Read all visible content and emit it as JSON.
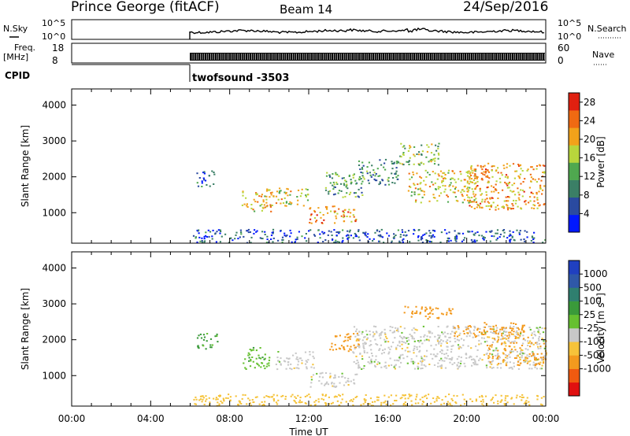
{
  "header": {
    "station": "Prince George (fitACF)",
    "beam": "Beam 14",
    "date": "24/Sep/2016"
  },
  "noise_panel": {
    "left_label": "N.Sky",
    "right_label": "N.Search",
    "ticks": [
      "10^5",
      "10^0"
    ]
  },
  "freq_panel": {
    "left_label_line1": "Freq.",
    "left_label_line2": "[MHz]",
    "left_ticks": [
      "18",
      "8"
    ],
    "right_ticks": [
      "60",
      "0"
    ],
    "right_label": "Nave"
  },
  "cpid": {
    "label": "CPID",
    "program": "twofsound -3503"
  },
  "colors": {
    "power_scale": [
      "#0018ff",
      "#2a4aa0",
      "#3b7f66",
      "#4fa84f",
      "#b8d63c",
      "#f2a21a",
      "#f06a12",
      "#e02010"
    ],
    "velocity_scale": [
      "#e01010",
      "#f05a10",
      "#f39a1e",
      "#f6c33a",
      "#c8c8c8",
      "#66c030",
      "#3a9a3a",
      "#2f7f6f",
      "#2f58a8",
      "#2040c0"
    ]
  },
  "chart_data": [
    {
      "type": "heatmap",
      "name": "Power",
      "ylabel": "Slant Range [km]",
      "yticks": [
        "1000",
        "2000",
        "3000",
        "4000"
      ],
      "ylim": [
        150,
        4450
      ],
      "xlim": [
        0,
        24
      ],
      "colorbar_label": "Power [dB]",
      "colorbar_ticks": [
        "28",
        "24",
        "20",
        "16",
        "12",
        "8",
        "4"
      ],
      "colorbar_range": [
        0,
        30
      ],
      "data_start_hour": 6.0,
      "echo_regions": [
        {
          "t": [
            6.1,
            24.0
          ],
          "r": [
            180,
            550
          ],
          "level": 6
        },
        {
          "t": [
            6.3,
            7.2
          ],
          "r": [
            1750,
            2200
          ],
          "level": 7
        },
        {
          "t": [
            8.6,
            10.2
          ],
          "r": [
            1050,
            1700
          ],
          "level": 20
        },
        {
          "t": [
            10.3,
            12.0
          ],
          "r": [
            1200,
            1700
          ],
          "level": 17
        },
        {
          "t": [
            12.0,
            14.4
          ],
          "r": [
            700,
            1200
          ],
          "level": 22
        },
        {
          "t": [
            12.8,
            14.8
          ],
          "r": [
            1450,
            2150
          ],
          "level": 12
        },
        {
          "t": [
            14.5,
            16.5
          ],
          "r": [
            1800,
            2500
          ],
          "level": 10
        },
        {
          "t": [
            16.5,
            18.6
          ],
          "r": [
            2350,
            2950
          ],
          "level": 14
        },
        {
          "t": [
            17.0,
            20.5
          ],
          "r": [
            1300,
            2200
          ],
          "level": 18
        },
        {
          "t": [
            20.0,
            23.9
          ],
          "r": [
            1100,
            2400
          ],
          "level": 21
        }
      ]
    },
    {
      "type": "heatmap",
      "name": "Velocity",
      "ylabel": "Slant Range [km]",
      "yticks": [
        "1000",
        "2000",
        "3000",
        "4000"
      ],
      "ylim": [
        150,
        4450
      ],
      "xlim": [
        0,
        24
      ],
      "xticks": [
        "00:00",
        "04:00",
        "08:00",
        "12:00",
        "16:00",
        "20:00",
        "00:00"
      ],
      "xlabel": "Time UT",
      "colorbar_label": "Velocity [m s^-1]",
      "colorbar_ticks": [
        "1000",
        "500",
        "100",
        "25",
        "-25",
        "-100",
        "-500",
        "-1000"
      ],
      "data_start_hour": 6.0,
      "echo_regions": [
        {
          "t": [
            6.1,
            24.0
          ],
          "r": [
            180,
            500
          ],
          "velocity": -60
        },
        {
          "t": [
            6.3,
            7.4
          ],
          "r": [
            1750,
            2200
          ],
          "velocity": 150
        },
        {
          "t": [
            8.6,
            10.0
          ],
          "r": [
            1200,
            1800
          ],
          "velocity": 80
        },
        {
          "t": [
            10.3,
            12.3
          ],
          "r": [
            1200,
            1700
          ],
          "velocity": 0
        },
        {
          "t": [
            12.0,
            14.5
          ],
          "r": [
            700,
            1100
          ],
          "velocity": 0
        },
        {
          "t": [
            13.0,
            14.6
          ],
          "r": [
            1700,
            2200
          ],
          "velocity": -200
        },
        {
          "t": [
            14.2,
            24.0
          ],
          "r": [
            1200,
            2400
          ],
          "velocity": 0
        },
        {
          "t": [
            16.8,
            19.3
          ],
          "r": [
            2600,
            2950
          ],
          "velocity": -300
        },
        {
          "t": [
            19.3,
            23.0
          ],
          "r": [
            2100,
            2500
          ],
          "velocity": -200
        },
        {
          "t": [
            21.0,
            24.0
          ],
          "r": [
            1300,
            2100
          ],
          "velocity": -120
        }
      ]
    }
  ]
}
